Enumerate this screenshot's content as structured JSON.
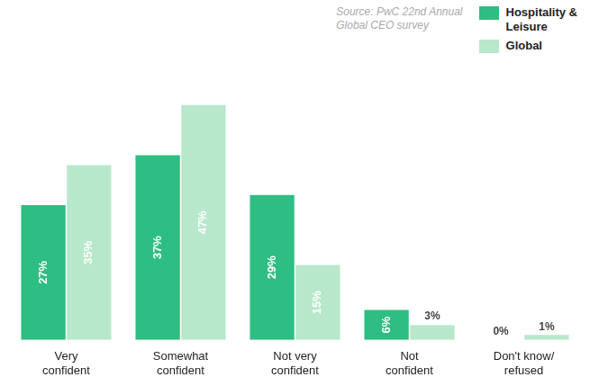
{
  "chart_data": {
    "type": "bar",
    "categories": [
      "Very\nconfident",
      "Somewhat\nconfident",
      "Not very\nconfident",
      "Not\nconfident",
      "Don't know/\nrefused"
    ],
    "series": [
      {
        "name": "Hospitality &\nLeisure",
        "color": "#2ebd82",
        "values": [
          27,
          37,
          29,
          6,
          0
        ],
        "value_labels": [
          "27%",
          "37%",
          "29%",
          "6%",
          "0%"
        ]
      },
      {
        "name": "Global",
        "color": "#b8e8cc",
        "values": [
          35,
          47,
          15,
          3,
          1
        ],
        "value_labels": [
          "35%",
          "47%",
          "15%",
          "3%",
          "1%"
        ]
      }
    ],
    "ylim": [
      0,
      54
    ],
    "grid": false,
    "legend": "upper right",
    "data_labels": true,
    "tick_labels": "x",
    "annotations": [
      "Source: PwC 22nd Annual\nGlobal CEO survey"
    ]
  }
}
